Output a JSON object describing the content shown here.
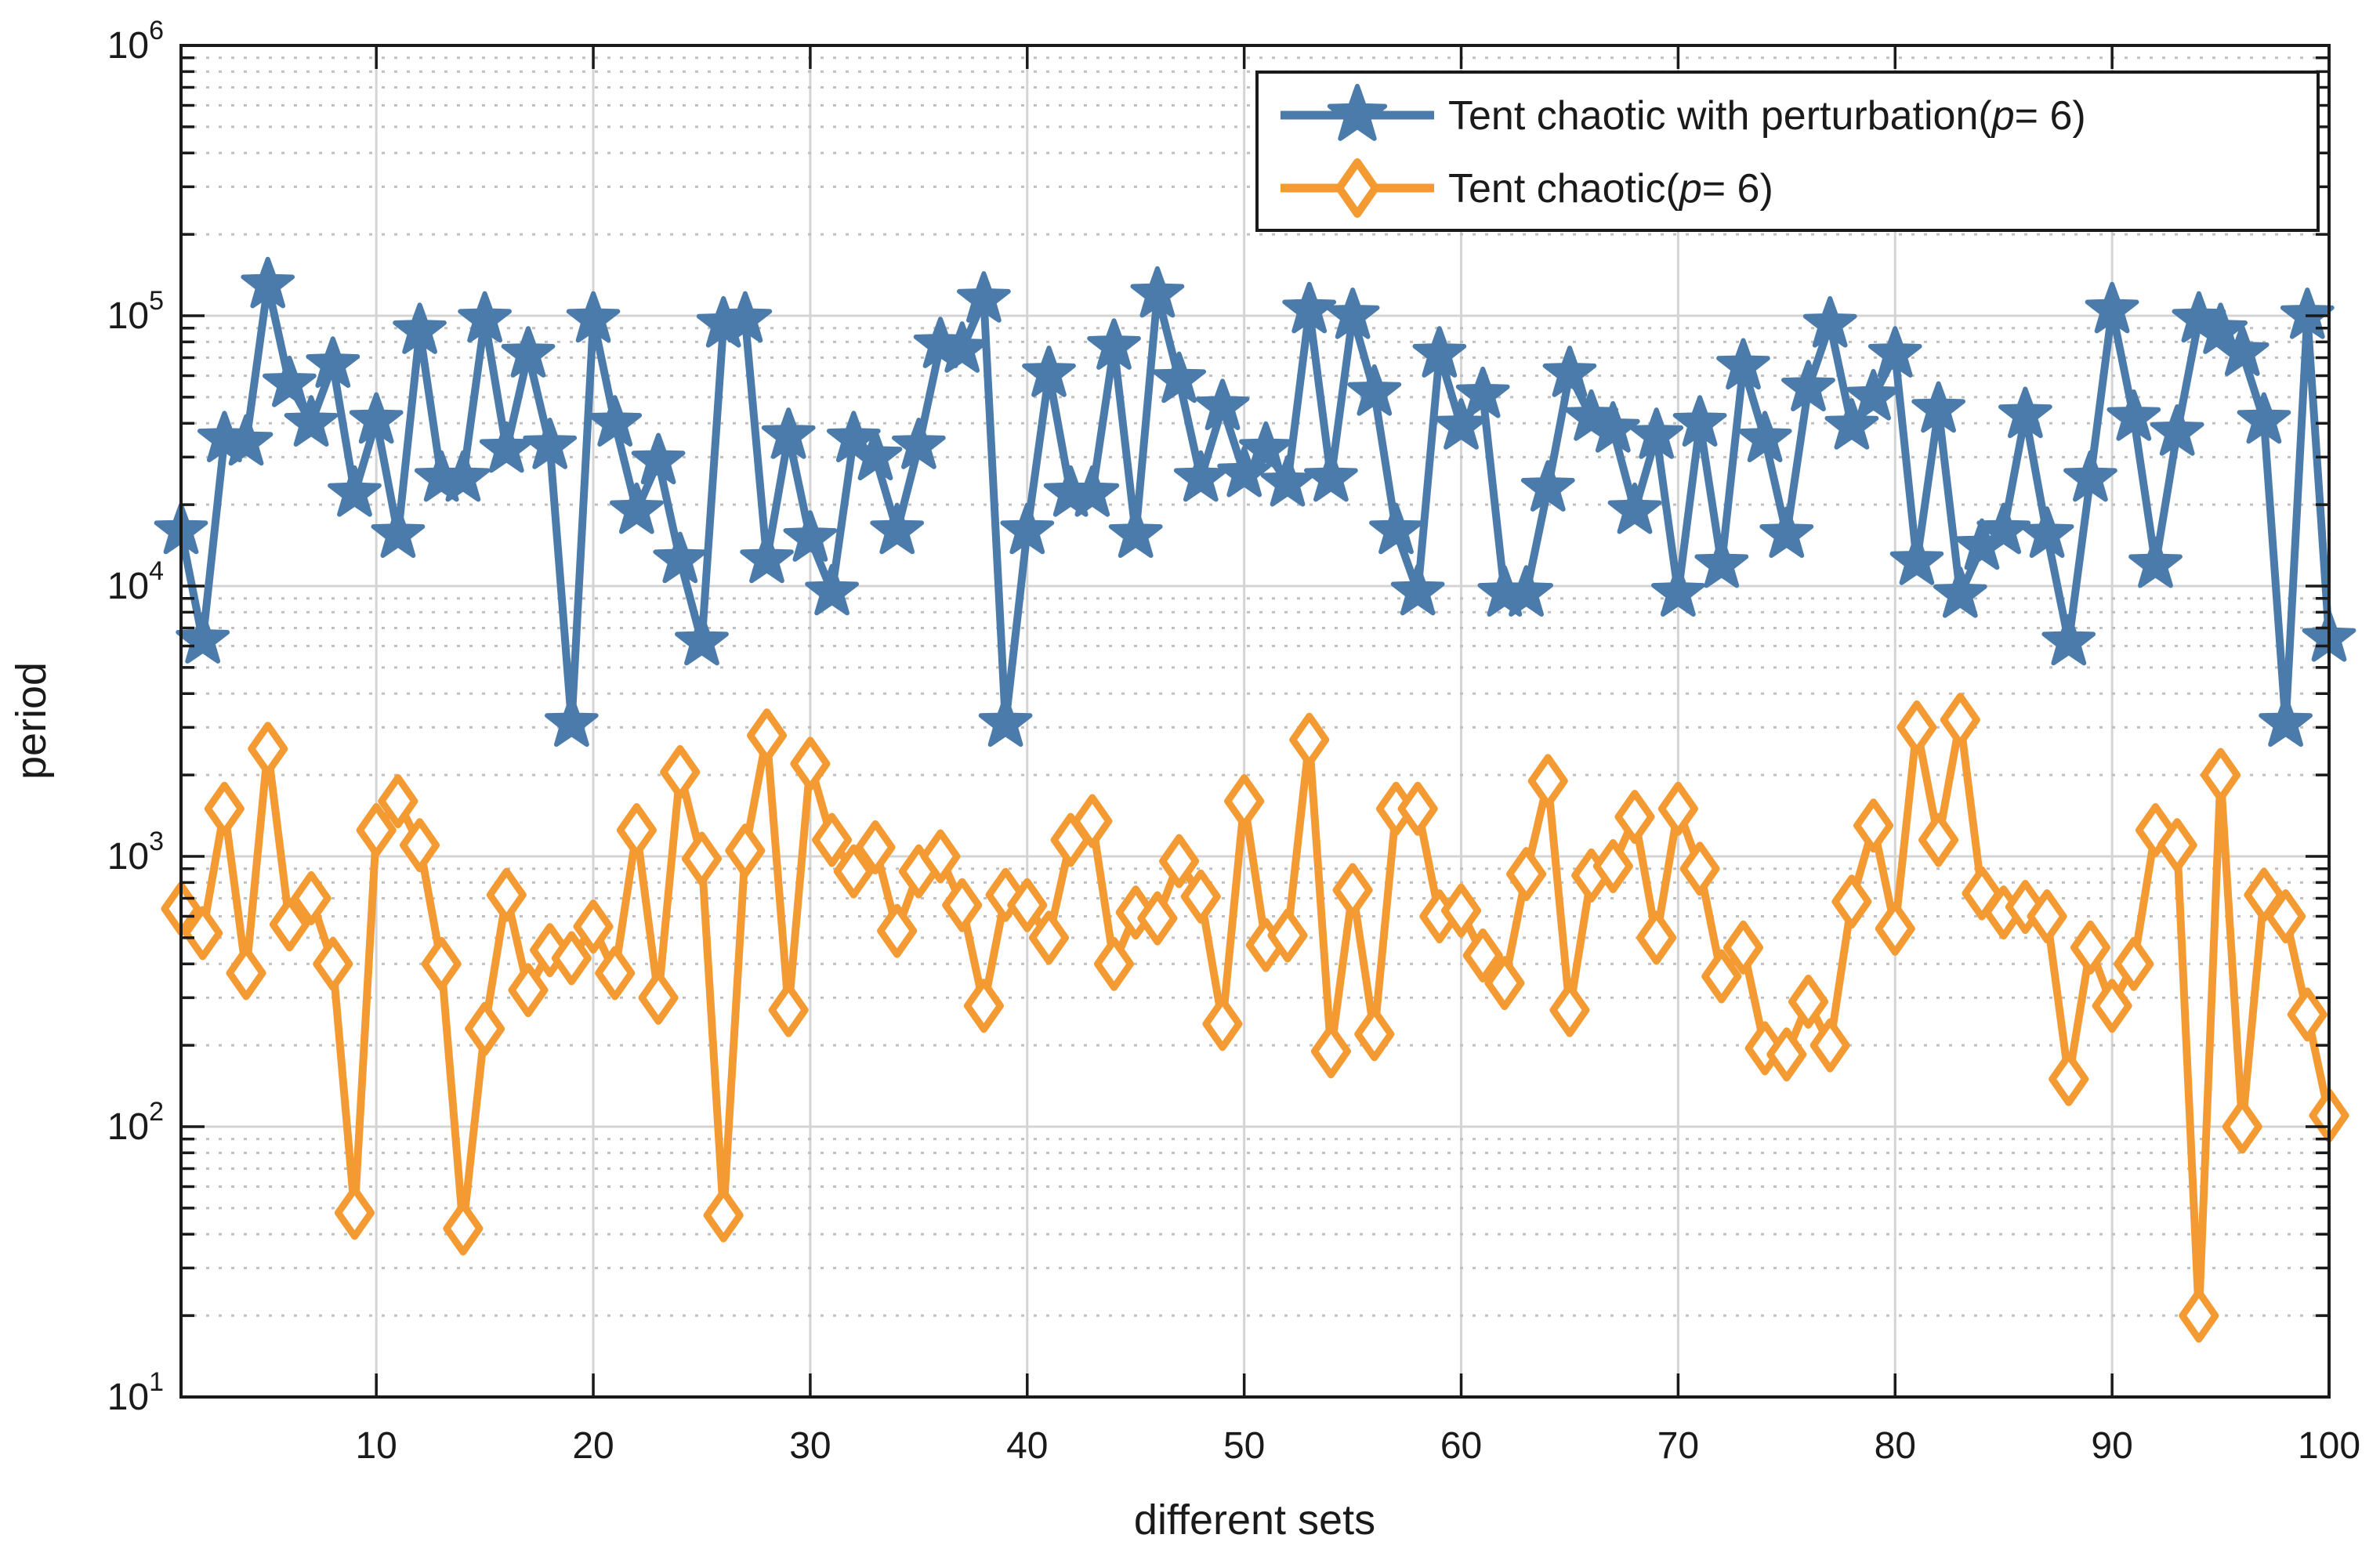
{
  "colors": {
    "blue": "#4b7bab",
    "orange": "#f49a33",
    "axis": "#1a1a1a",
    "grid_major": "#d4d4d4",
    "grid_minor": "#bfbfbf",
    "background": "#ffffff"
  },
  "axes": {
    "xlabel": "different sets",
    "ylabel": "period",
    "x_ticks": [
      10,
      20,
      30,
      40,
      50,
      60,
      70,
      80,
      90,
      100
    ],
    "y_tick_base": "10",
    "y_tick_exponents": [
      1,
      2,
      3,
      4,
      5,
      6
    ],
    "xlim": [
      1,
      100
    ],
    "ylim_log10": [
      1,
      6
    ]
  },
  "legend": {
    "items": [
      {
        "pre": "Tent chaotic with perturbation(",
        "italic": "p",
        "post": "= 6)",
        "series": "perturbed",
        "marker": "star"
      },
      {
        "pre": "Tent chaotic(",
        "italic": "p",
        "post": "= 6)",
        "series": "plain",
        "marker": "diamond"
      }
    ]
  },
  "chart_data": {
    "type": "line",
    "title": "",
    "xlabel": "different sets",
    "ylabel": "period",
    "x_range": [
      1,
      100
    ],
    "y_scale": "log",
    "ylim": [
      10,
      1000000
    ],
    "grid": true,
    "legend_position": "top-right",
    "series": [
      {
        "name": "Tent chaotic with perturbation(p= 6)",
        "marker": "star",
        "color_key": "blue",
        "values": [
          16000,
          6300,
          35000,
          34000,
          130000,
          56000,
          40000,
          66000,
          22000,
          41000,
          15500,
          88000,
          25000,
          25000,
          97000,
          32000,
          72000,
          33000,
          3100,
          97000,
          40000,
          19000,
          29000,
          12500,
          6200,
          93000,
          97000,
          12500,
          36000,
          15000,
          9500,
          35000,
          30000,
          16000,
          33000,
          78000,
          75000,
          115000,
          3100,
          16000,
          61000,
          22000,
          22000,
          77000,
          15500,
          120000,
          58000,
          25000,
          46000,
          26000,
          32000,
          24000,
          105000,
          25000,
          100000,
          52000,
          16000,
          9500,
          72000,
          39000,
          51000,
          9400,
          9400,
          23000,
          61000,
          42000,
          38000,
          19000,
          36000,
          9400,
          40000,
          12000,
          65000,
          35000,
          15500,
          54000,
          93000,
          39000,
          50000,
          72000,
          12300,
          45000,
          9300,
          14000,
          16000,
          43000,
          15500,
          6200,
          25000,
          105000,
          42000,
          12000,
          37000,
          97000,
          88000,
          73000,
          41000,
          3100,
          100000,
          6400
        ]
      },
      {
        "name": "Tent chaotic(p= 6)",
        "marker": "diamond",
        "color_key": "orange",
        "values": [
          640,
          520,
          1500,
          370,
          2500,
          560,
          700,
          400,
          48,
          1250,
          1600,
          1100,
          400,
          42,
          230,
          720,
          320,
          450,
          420,
          550,
          370,
          1250,
          300,
          2050,
          980,
          47,
          1050,
          2800,
          270,
          2200,
          1150,
          880,
          1080,
          530,
          880,
          1000,
          660,
          280,
          720,
          660,
          500,
          1150,
          1350,
          400,
          620,
          590,
          960,
          710,
          240,
          1600,
          470,
          510,
          2700,
          190,
          750,
          220,
          1500,
          1500,
          600,
          630,
          430,
          340,
          860,
          1900,
          270,
          850,
          920,
          1400,
          500,
          1500,
          900,
          360,
          460,
          195,
          185,
          290,
          200,
          680,
          1300,
          540,
          3000,
          1150,
          3200,
          730,
          620,
          650,
          600,
          150,
          460,
          280,
          400,
          1250,
          1100,
          20,
          2000,
          100,
          720,
          600,
          260,
          110
        ]
      }
    ]
  }
}
